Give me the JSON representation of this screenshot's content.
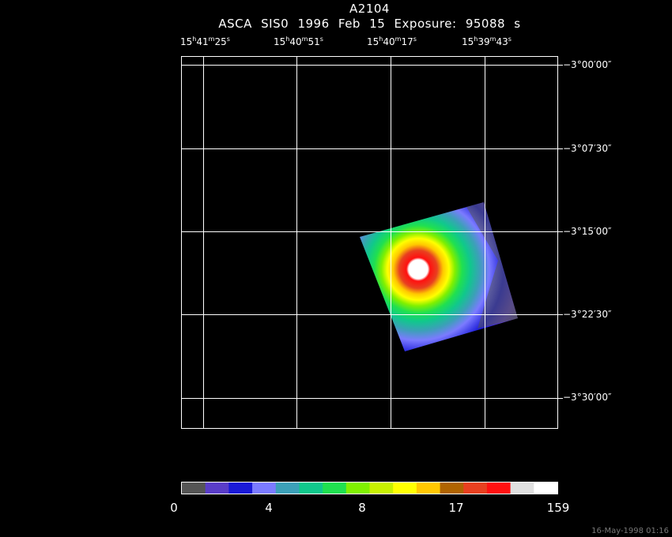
{
  "plot": {
    "title": "A2104",
    "subtitle": "ASCA SIS0    1996 Feb 15    Exposure: 95088 s",
    "ra_labels": [
      "15h41m25s",
      "15h40m51s",
      "15h40m17s",
      "15h39m43s"
    ],
    "dec_labels": [
      "−3°00′00″",
      "−3°07′30″",
      "−3°15′00″",
      "−3°22′30″",
      "−3°30′00″"
    ],
    "colorbar_labels": [
      "0",
      "4",
      "8",
      "17",
      "159"
    ],
    "colorbar_colors": [
      "#555555",
      "#5a3dc8",
      "#1a1ad8",
      "#7b7bff",
      "#3ca0b8",
      "#10c88c",
      "#20e050",
      "#80f000",
      "#c8f000",
      "#ffff00",
      "#ffc800",
      "#b06400",
      "#e84020",
      "#ff1010",
      "#e0e0e0",
      "#ffffff"
    ],
    "footer": "16-May-1998 01:16"
  }
}
